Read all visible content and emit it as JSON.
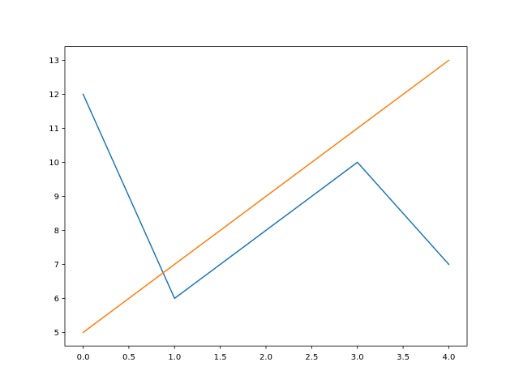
{
  "chart_data": {
    "type": "line",
    "title": "",
    "xlabel": "",
    "ylabel": "",
    "xlim": [
      -0.2,
      4.2
    ],
    "ylim": [
      4.6,
      13.4
    ],
    "xticks": [
      0.0,
      0.5,
      1.0,
      1.5,
      2.0,
      2.5,
      3.0,
      3.5,
      4.0
    ],
    "xtick_labels": [
      "0.0",
      "0.5",
      "1.0",
      "1.5",
      "2.0",
      "2.5",
      "3.0",
      "3.5",
      "4.0"
    ],
    "yticks": [
      5,
      6,
      7,
      8,
      9,
      10,
      11,
      12,
      13
    ],
    "ytick_labels": [
      "5",
      "6",
      "7",
      "8",
      "9",
      "10",
      "11",
      "12",
      "13"
    ],
    "grid": false,
    "x": [
      0,
      1,
      2,
      3,
      4
    ],
    "series": [
      {
        "values": [
          12,
          6,
          8,
          10,
          7
        ],
        "color": "#1f77b4"
      },
      {
        "values": [
          5,
          7,
          9,
          11,
          13
        ],
        "color": "#ff7f0e"
      }
    ]
  }
}
